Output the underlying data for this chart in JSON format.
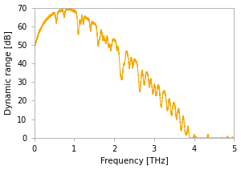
{
  "title": "",
  "xlabel": "Frequency [THz]",
  "ylabel": "Dynamic range [dB]",
  "xlim": [
    0,
    5
  ],
  "ylim": [
    0,
    70
  ],
  "xticks": [
    0,
    1,
    2,
    3,
    4,
    5
  ],
  "yticks": [
    0,
    10,
    20,
    30,
    40,
    50,
    60,
    70
  ],
  "line_color": "#F5A800",
  "background_color": "#ffffff",
  "line_width": 0.7,
  "figsize": [
    3.0,
    2.12
  ],
  "dpi": 100,
  "spine_color": "#aaaaaa",
  "tick_color": "#aaaaaa",
  "label_fontsize": 7.5,
  "tick_fontsize": 7
}
